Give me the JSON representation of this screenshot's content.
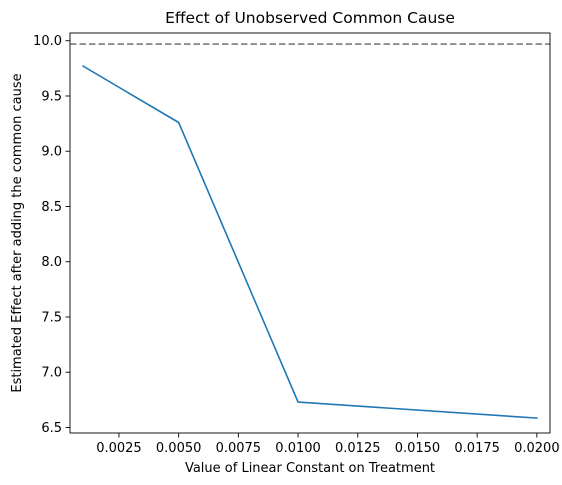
{
  "chart_data": {
    "type": "line",
    "title": "Effect of Unobserved Common Cause",
    "xlabel": "Value of Linear Constant on Treatment",
    "ylabel": "Estimated Effect after adding the common cause",
    "xlim": [
      0.00045,
      0.02055
    ],
    "ylim": [
      6.45,
      10.07
    ],
    "xticks": [
      0.0025,
      0.005,
      0.0075,
      0.01,
      0.0125,
      0.015,
      0.0175,
      0.02
    ],
    "xtick_labels": [
      "0.0025",
      "0.0050",
      "0.0075",
      "0.0100",
      "0.0125",
      "0.0150",
      "0.0175",
      "0.0200"
    ],
    "yticks": [
      6.5,
      7.0,
      7.5,
      8.0,
      8.5,
      9.0,
      9.5,
      10.0
    ],
    "ytick_labels": [
      "6.5",
      "7.0",
      "7.5",
      "8.0",
      "8.5",
      "9.0",
      "9.5",
      "10.0"
    ],
    "grid": false,
    "series": [
      {
        "x": [
          0.001,
          0.005,
          0.01,
          0.02
        ],
        "y": [
          9.77,
          9.26,
          6.73,
          6.585
        ],
        "color": "#1f77b4"
      }
    ],
    "reference_line": {
      "orientation": "horizontal",
      "y": 9.97,
      "color": "#7f7f7f",
      "style": "dashed"
    }
  }
}
